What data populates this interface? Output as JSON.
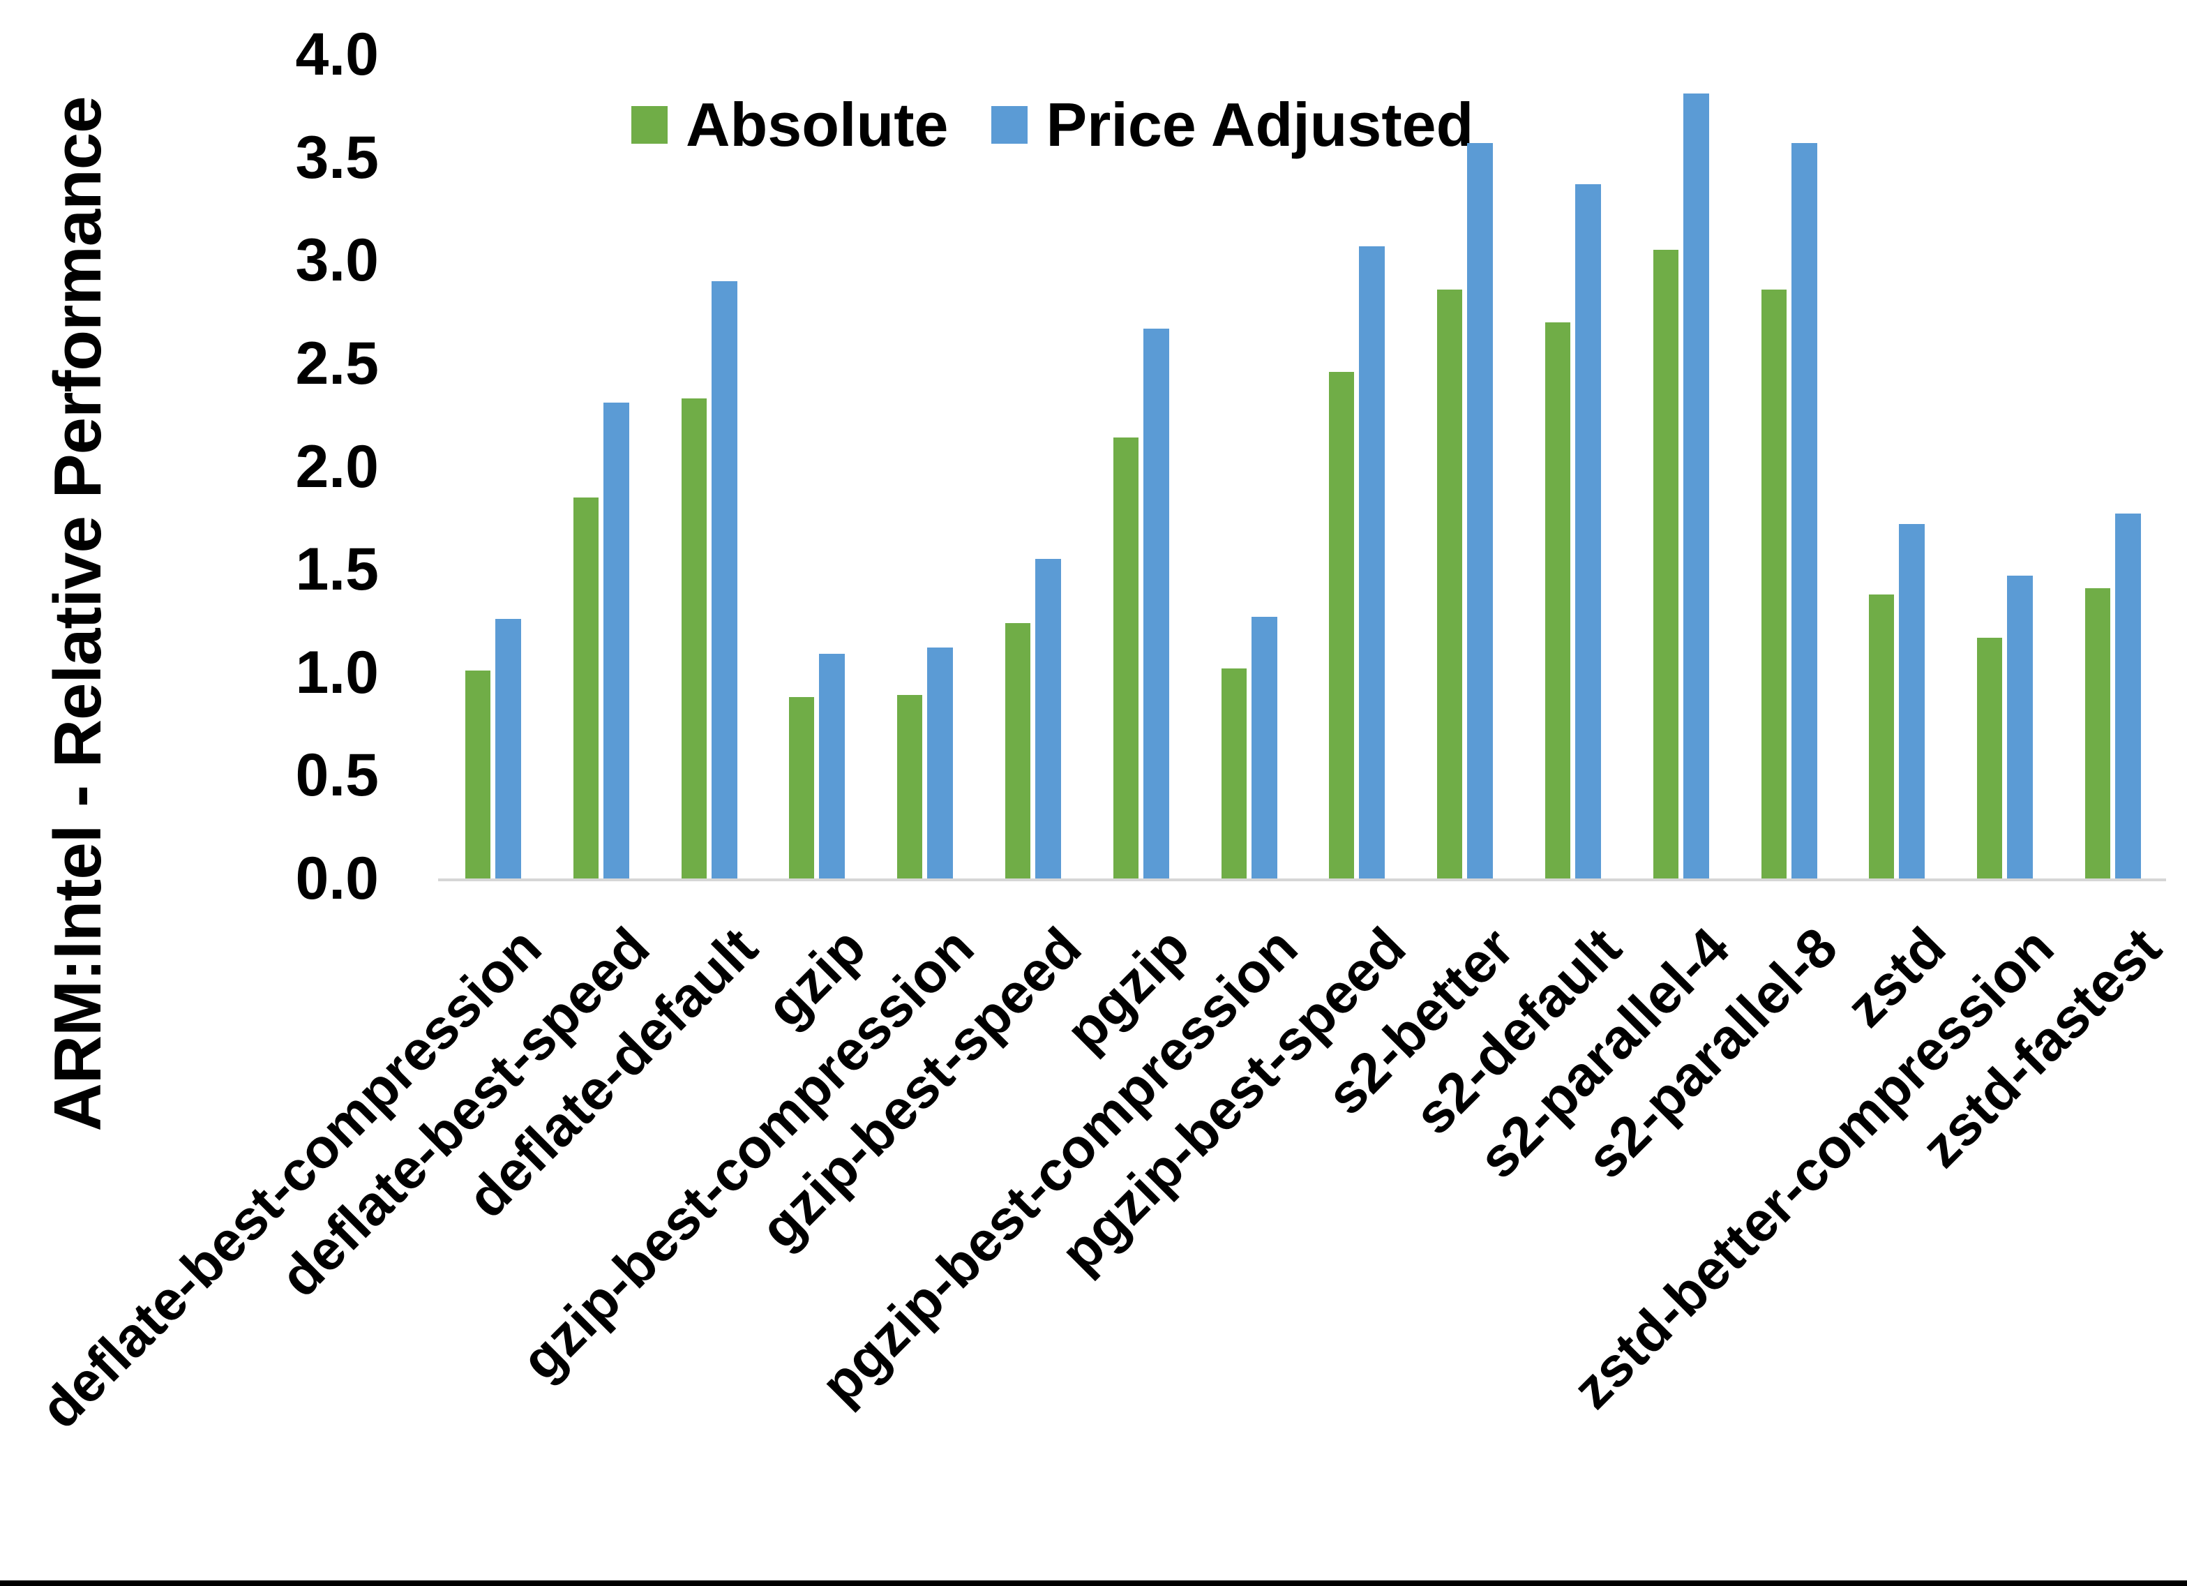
{
  "chart_data": {
    "type": "bar",
    "title": "",
    "xlabel": "",
    "ylabel": "ARM:Intel - Relative Performance",
    "ylim": [
      0.0,
      4.0
    ],
    "ytick_step": 0.5,
    "grid": false,
    "legend_position": "top-center",
    "background": "#ffffff",
    "axis_line_color": "#d6d6d6",
    "categories": [
      "deflate-best-compression",
      "deflate-best-speed",
      "deflate-default",
      "gzip",
      "gzip-best-compression",
      "gzip-best-speed",
      "pgzip",
      "pgzip-best-compression",
      "pgzip-best-speed",
      "s2-better",
      "s2-default",
      "s2-parallel-4",
      "s2-parallel-8",
      "zstd",
      "zstd-better-compression",
      "zstd-fastest"
    ],
    "series": [
      {
        "name": "Absolute",
        "color": "#70AD47",
        "values": [
          1.01,
          1.85,
          2.33,
          0.88,
          0.89,
          1.24,
          2.14,
          1.02,
          2.46,
          2.86,
          2.7,
          3.05,
          2.86,
          1.38,
          1.17,
          1.41
        ]
      },
      {
        "name": "Price Adjusted",
        "color": "#5B9BD5",
        "values": [
          1.26,
          2.31,
          2.9,
          1.09,
          1.12,
          1.55,
          2.67,
          1.27,
          3.07,
          3.57,
          3.37,
          3.81,
          3.57,
          1.72,
          1.47,
          1.77
        ]
      }
    ]
  },
  "axis": {
    "y_ticks": [
      "4.0",
      "3.5",
      "3.0",
      "2.5",
      "2.0",
      "1.5",
      "1.0",
      "0.5",
      "0.0"
    ]
  }
}
